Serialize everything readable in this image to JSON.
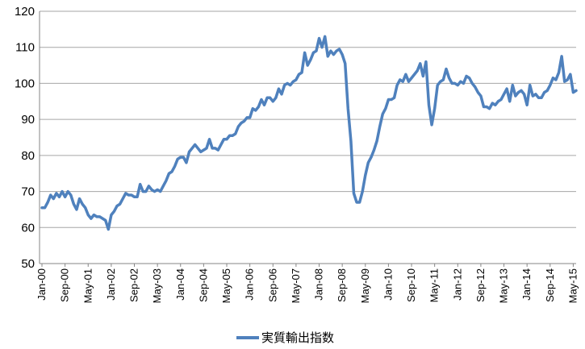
{
  "chart_data": {
    "type": "line",
    "title": "",
    "xlabel": "",
    "ylabel": "",
    "ylim": [
      50,
      120
    ],
    "yticks": [
      50,
      60,
      70,
      80,
      90,
      100,
      110,
      120
    ],
    "grid": "horizontal",
    "legend_position": "bottom",
    "x_start": "Jan-00",
    "x_end": "May-15",
    "xtick_labels": [
      "Jan-00",
      "Sep-00",
      "May-01",
      "Jan-02",
      "Sep-02",
      "May-03",
      "Jan-04",
      "Sep-04",
      "May-05",
      "Jan-06",
      "Sep-06",
      "May-07",
      "Jan-08",
      "Sep-08",
      "May-09",
      "Jan-10",
      "Sep-10",
      "May-11",
      "Jan-12",
      "Sep-12",
      "May-13",
      "Jan-14",
      "Sep-14",
      "May-15"
    ],
    "series": [
      {
        "name": "実質輸出指数",
        "color": "#4f81bd",
        "values": [
          65.5,
          65.5,
          67,
          69,
          68,
          69.5,
          68.5,
          70,
          68.5,
          70,
          69,
          66.5,
          65,
          68,
          66.5,
          65.5,
          63.5,
          62.5,
          63.5,
          63,
          63,
          62.5,
          62,
          59.5,
          63.5,
          64.5,
          66,
          66.5,
          68,
          69.5,
          69,
          69,
          68.5,
          68.5,
          72,
          70,
          70,
          71.5,
          70.5,
          70,
          70.5,
          70,
          71.5,
          73,
          75,
          75.5,
          77,
          79,
          79.5,
          79.5,
          78,
          81,
          82,
          83,
          82,
          81,
          81.5,
          82,
          84.5,
          82,
          82,
          81.5,
          83,
          84.5,
          84.5,
          85.5,
          85.5,
          86,
          88,
          89,
          89.5,
          90.5,
          90.5,
          93,
          92.5,
          93.5,
          95.5,
          94,
          96,
          96,
          95,
          96,
          98.5,
          97,
          99.5,
          100,
          99.5,
          100.5,
          101,
          102.5,
          103,
          108.5,
          105,
          106.5,
          108.5,
          109,
          112.5,
          110,
          113,
          107.5,
          109,
          108,
          109,
          109.5,
          108,
          105.5,
          93,
          84,
          69.5,
          67,
          67,
          70,
          74.5,
          78,
          79.5,
          81.5,
          84,
          88,
          91.5,
          93,
          95.5,
          95.5,
          96,
          99.5,
          101,
          100.5,
          102.5,
          100.5,
          101.5,
          102.5,
          103.5,
          105.5,
          102,
          106,
          94,
          88.5,
          93,
          99.5,
          100.5,
          101,
          104,
          101.5,
          100,
          100,
          99.5,
          100.5,
          100,
          102,
          101.5,
          100,
          99,
          97.5,
          96.5,
          93.5,
          93.5,
          93,
          94.5,
          94,
          95,
          95.5,
          97,
          98.5,
          95,
          99.5,
          96.5,
          97.5,
          98,
          97,
          94,
          99.5,
          96.5,
          97,
          96,
          96,
          97.5,
          98,
          99.5,
          101.5,
          101,
          103,
          107.5,
          100.5,
          101,
          102.5,
          97.5,
          98
        ]
      }
    ]
  }
}
